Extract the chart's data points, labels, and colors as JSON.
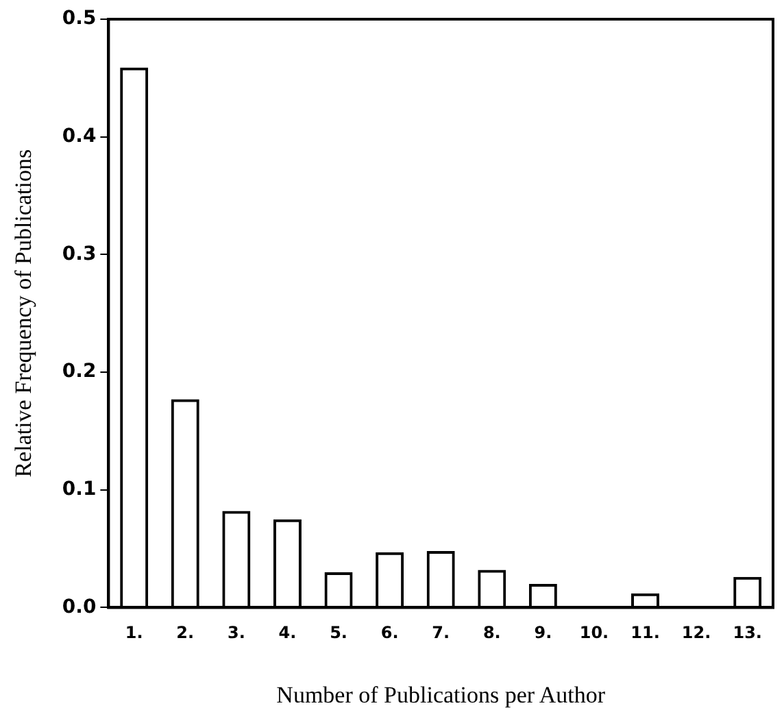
{
  "chart_data": {
    "type": "bar",
    "xlabel": "Number of Publications per Author",
    "ylabel": "Relative Frequency of Publications",
    "categories": [
      "1.",
      "2.",
      "3.",
      "4.",
      "5.",
      "6.",
      "7.",
      "8.",
      "9.",
      "10.",
      "11.",
      "12.",
      "13."
    ],
    "values": [
      0.459,
      0.177,
      0.082,
      0.075,
      0.03,
      0.047,
      0.048,
      0.032,
      0.02,
      0,
      0.012,
      0,
      0.026
    ],
    "color": "#000000",
    "ylim": [
      0,
      0.5
    ],
    "yticks": [
      {
        "value": 0,
        "label": "0.0"
      },
      {
        "value": 0.1,
        "label": "0.1"
      },
      {
        "value": 0.2,
        "label": "0.2"
      },
      {
        "value": 0.3,
        "label": "0.3"
      },
      {
        "value": 0.4,
        "label": "0.4"
      },
      {
        "value": 0.5,
        "label": "0.5"
      }
    ],
    "grid": false,
    "legend": false
  }
}
